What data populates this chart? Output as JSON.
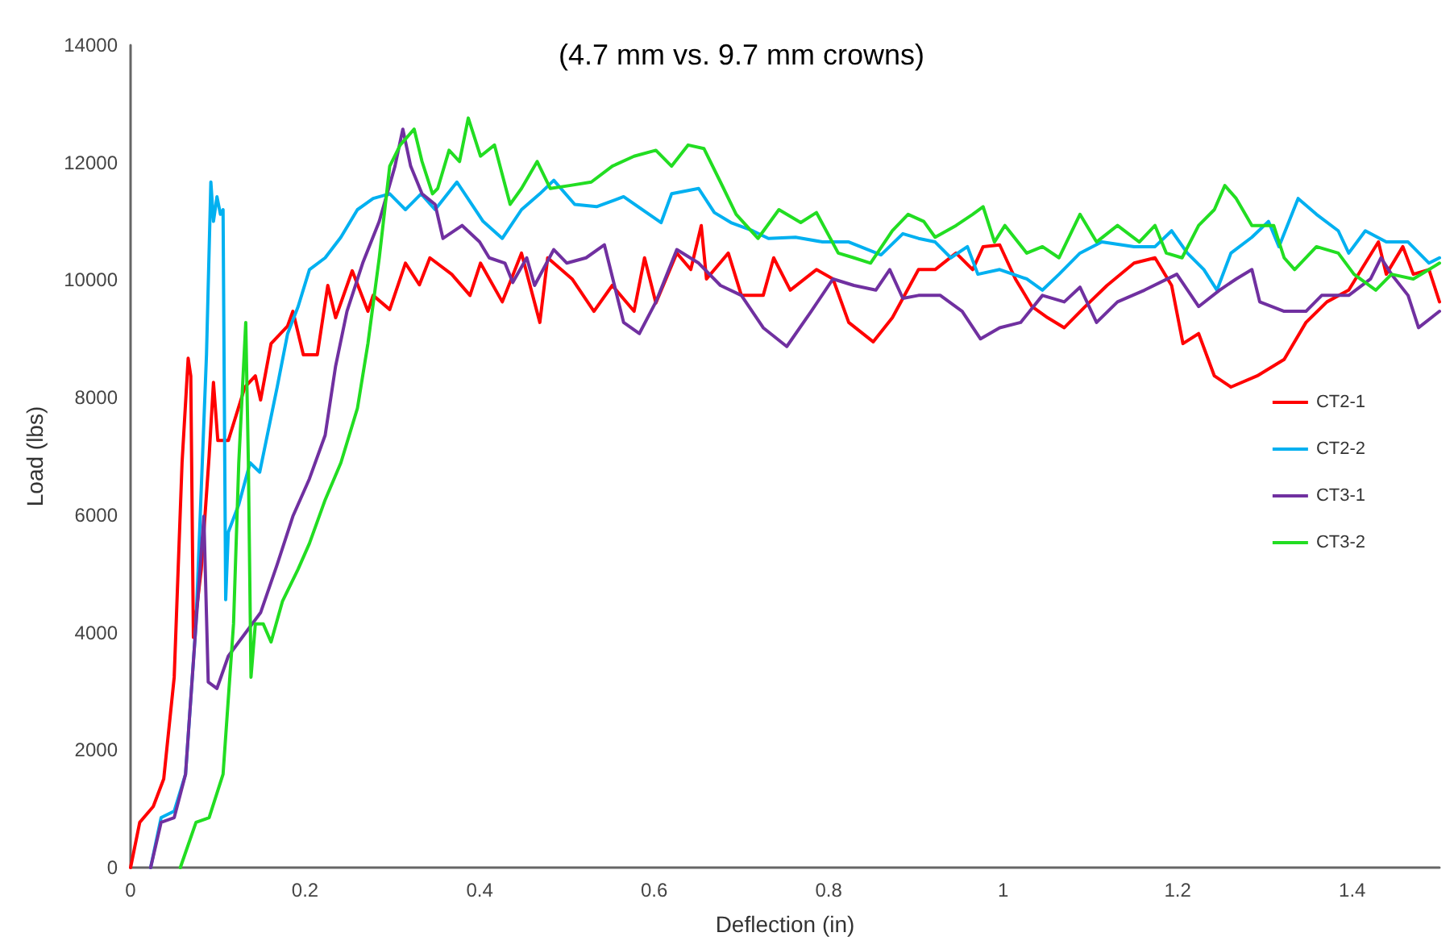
{
  "chart_data": {
    "type": "line",
    "title": "(4.7 mm vs. 9.7 mm crowns)",
    "xlabel": "Deflection (in)",
    "ylabel": "Load (lbs)",
    "xlim": [
      0,
      1.5
    ],
    "xticks": [
      0,
      0.2,
      0.4,
      0.6,
      0.8,
      1,
      1.2,
      1.4
    ],
    "ylim": [
      0,
      14000
    ],
    "yticks": [
      0,
      2000,
      4000,
      6000,
      8000,
      10000,
      12000,
      14000
    ],
    "grid": false,
    "legend": "right",
    "marker": "none",
    "line_style": "solid",
    "series": [
      {
        "name": "CT2-1",
        "color": "#ff0000",
        "x": [
          0,
          0.0105,
          0.026,
          0.038,
          0.05,
          0.059,
          0.066,
          0.069,
          0.072,
          0.081,
          0.09,
          0.095,
          0.1,
          0.112,
          0.131,
          0.143,
          0.149,
          0.161,
          0.18,
          0.186,
          0.198,
          0.214,
          0.226,
          0.235,
          0.254,
          0.272,
          0.278,
          0.297,
          0.315,
          0.331,
          0.343,
          0.368,
          0.389,
          0.401,
          0.426,
          0.448,
          0.469,
          0.478,
          0.506,
          0.531,
          0.552,
          0.577,
          0.589,
          0.602,
          0.626,
          0.642,
          0.654,
          0.66,
          0.685,
          0.7,
          0.725,
          0.737,
          0.756,
          0.786,
          0.805,
          0.823,
          0.851,
          0.873,
          0.903,
          0.922,
          0.946,
          0.965,
          0.977,
          0.996,
          1.014,
          1.033,
          1.051,
          1.07,
          1.094,
          1.119,
          1.15,
          1.174,
          1.193,
          1.206,
          1.224,
          1.242,
          1.261,
          1.291,
          1.322,
          1.347,
          1.371,
          1.396,
          1.415,
          1.43,
          1.439,
          1.458,
          1.47,
          1.488,
          1.5
        ],
        "values": [
          0,
          770,
          1040,
          1510,
          3240,
          6890,
          8670,
          8370,
          3920,
          5080,
          7000,
          8260,
          7270,
          7270,
          8180,
          8370,
          7960,
          8920,
          9220,
          9470,
          8730,
          8730,
          9910,
          9360,
          10160,
          9470,
          9740,
          9500,
          10290,
          9920,
          10380,
          10100,
          9740,
          10290,
          9630,
          10460,
          9280,
          10380,
          10020,
          9470,
          9910,
          9470,
          10380,
          9610,
          10460,
          10180,
          10930,
          10020,
          10460,
          9740,
          9740,
          10380,
          9830,
          10180,
          10020,
          9280,
          8950,
          9360,
          10180,
          10180,
          10460,
          10180,
          10570,
          10600,
          10020,
          9550,
          9360,
          9190,
          9550,
          9910,
          10290,
          10380,
          9910,
          8920,
          9090,
          8370,
          8180,
          8370,
          8650,
          9280,
          9630,
          9830,
          10290,
          10650,
          10100,
          10570,
          10100,
          10180,
          9630
        ]
      },
      {
        "name": "CT2-2",
        "color": "#00b0f0",
        "x": [
          0.023,
          0.035,
          0.05,
          0.063,
          0.075,
          0.087,
          0.092,
          0.095,
          0.099,
          0.103,
          0.106,
          0.109,
          0.112,
          0.124,
          0.137,
          0.148,
          0.168,
          0.18,
          0.192,
          0.205,
          0.223,
          0.241,
          0.26,
          0.278,
          0.297,
          0.315,
          0.333,
          0.349,
          0.374,
          0.404,
          0.426,
          0.448,
          0.469,
          0.485,
          0.509,
          0.534,
          0.565,
          0.608,
          0.62,
          0.651,
          0.669,
          0.688,
          0.713,
          0.731,
          0.762,
          0.793,
          0.823,
          0.86,
          0.885,
          0.903,
          0.922,
          0.94,
          0.959,
          0.971,
          0.996,
          1.027,
          1.045,
          1.064,
          1.088,
          1.113,
          1.15,
          1.174,
          1.193,
          1.211,
          1.23,
          1.245,
          1.261,
          1.285,
          1.304,
          1.316,
          1.338,
          1.359,
          1.384,
          1.396,
          1.415,
          1.439,
          1.464,
          1.488,
          1.5
        ],
        "values": [
          0,
          850,
          960,
          1590,
          4150,
          8730,
          11670,
          11000,
          11420,
          11120,
          11200,
          4560,
          5710,
          6180,
          6890,
          6730,
          8180,
          9090,
          9550,
          10180,
          10380,
          10730,
          11200,
          11390,
          11470,
          11200,
          11470,
          11200,
          11670,
          11000,
          10710,
          11200,
          11470,
          11700,
          11290,
          11250,
          11420,
          10980,
          11470,
          11560,
          11150,
          10980,
          10840,
          10710,
          10730,
          10650,
          10650,
          10430,
          10790,
          10710,
          10650,
          10380,
          10570,
          10100,
          10180,
          10020,
          9830,
          10100,
          10460,
          10650,
          10570,
          10570,
          10840,
          10460,
          10180,
          9830,
          10460,
          10730,
          11000,
          10570,
          11390,
          11120,
          10840,
          10460,
          10840,
          10650,
          10650,
          10290,
          10380
        ]
      },
      {
        "name": "CT3-1",
        "color": "#7030a0",
        "x": [
          0.023,
          0.035,
          0.05,
          0.063,
          0.075,
          0.084,
          0.089,
          0.099,
          0.112,
          0.131,
          0.149,
          0.168,
          0.186,
          0.205,
          0.223,
          0.235,
          0.248,
          0.266,
          0.285,
          0.303,
          0.312,
          0.321,
          0.334,
          0.349,
          0.358,
          0.38,
          0.4,
          0.411,
          0.429,
          0.438,
          0.454,
          0.463,
          0.485,
          0.5,
          0.522,
          0.543,
          0.565,
          0.583,
          0.602,
          0.626,
          0.651,
          0.676,
          0.7,
          0.725,
          0.752,
          0.78,
          0.805,
          0.829,
          0.854,
          0.87,
          0.885,
          0.903,
          0.928,
          0.953,
          0.974,
          0.996,
          1.02,
          1.045,
          1.07,
          1.088,
          1.107,
          1.131,
          1.162,
          1.199,
          1.224,
          1.248,
          1.267,
          1.285,
          1.294,
          1.322,
          1.347,
          1.365,
          1.396,
          1.421,
          1.433,
          1.445,
          1.464,
          1.476,
          1.5
        ],
        "values": [
          0,
          770,
          850,
          1590,
          4150,
          5980,
          3160,
          3050,
          3600,
          3980,
          4340,
          5160,
          5980,
          6620,
          7360,
          8540,
          9470,
          10290,
          11000,
          11940,
          12570,
          11940,
          11470,
          11290,
          10710,
          10930,
          10650,
          10380,
          10290,
          9960,
          10380,
          9910,
          10520,
          10290,
          10380,
          10600,
          9280,
          9090,
          9630,
          10520,
          10290,
          9910,
          9740,
          9190,
          8870,
          9470,
          10020,
          9910,
          9830,
          10180,
          9690,
          9740,
          9740,
          9470,
          9000,
          9190,
          9280,
          9740,
          9630,
          9880,
          9280,
          9630,
          9830,
          10100,
          9550,
          9830,
          10020,
          10180,
          9630,
          9470,
          9470,
          9740,
          9740,
          10020,
          10380,
          10100,
          9740,
          9190,
          9470
        ]
      },
      {
        "name": "CT3-2",
        "color": "#22dd22",
        "x": [
          0.057,
          0.075,
          0.09,
          0.106,
          0.118,
          0.124,
          0.132,
          0.135,
          0.138,
          0.143,
          0.152,
          0.161,
          0.174,
          0.192,
          0.205,
          0.223,
          0.241,
          0.26,
          0.272,
          0.285,
          0.297,
          0.309,
          0.325,
          0.334,
          0.346,
          0.352,
          0.365,
          0.377,
          0.387,
          0.401,
          0.417,
          0.435,
          0.448,
          0.466,
          0.481,
          0.503,
          0.528,
          0.552,
          0.577,
          0.602,
          0.62,
          0.639,
          0.657,
          0.676,
          0.694,
          0.719,
          0.743,
          0.768,
          0.786,
          0.811,
          0.829,
          0.848,
          0.873,
          0.891,
          0.909,
          0.922,
          0.946,
          0.965,
          0.977,
          0.99,
          1.002,
          1.027,
          1.045,
          1.064,
          1.088,
          1.107,
          1.131,
          1.156,
          1.174,
          1.187,
          1.205,
          1.224,
          1.242,
          1.254,
          1.267,
          1.285,
          1.31,
          1.322,
          1.334,
          1.359,
          1.384,
          1.402,
          1.427,
          1.445,
          1.47,
          1.488,
          1.5
        ],
        "values": [
          0,
          770,
          850,
          1590,
          4150,
          6890,
          9280,
          6890,
          3240,
          4150,
          4150,
          3840,
          4530,
          5080,
          5520,
          6260,
          6890,
          7820,
          8920,
          10380,
          11940,
          12300,
          12570,
          12020,
          11470,
          11560,
          12210,
          12020,
          12760,
          12110,
          12300,
          11290,
          11560,
          12020,
          11560,
          11610,
          11670,
          11940,
          12110,
          12210,
          11940,
          12300,
          12240,
          11670,
          11120,
          10710,
          11200,
          10980,
          11150,
          10460,
          10380,
          10290,
          10840,
          11120,
          11000,
          10730,
          10930,
          11120,
          11250,
          10650,
          10930,
          10460,
          10570,
          10380,
          11120,
          10650,
          10930,
          10650,
          10930,
          10460,
          10380,
          10930,
          11200,
          11610,
          11390,
          10930,
          10930,
          10380,
          10180,
          10570,
          10460,
          10100,
          9830,
          10100,
          10020,
          10180,
          10290
        ]
      }
    ]
  }
}
